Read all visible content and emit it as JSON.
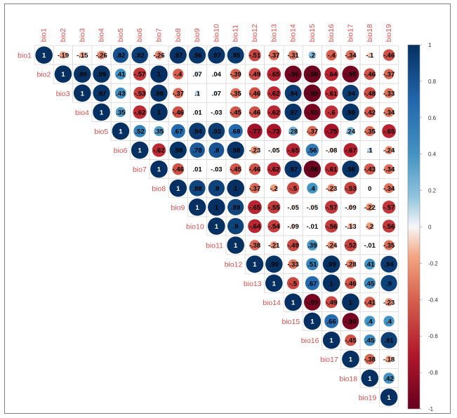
{
  "chart_data": {
    "type": "heatmap",
    "style": "correlation-circles-upper-triangle",
    "title": "",
    "xlabel": "",
    "ylabel": "",
    "variables": [
      "bio1",
      "bio2",
      "bio3",
      "bio4",
      "bio5",
      "bio6",
      "bio7",
      "bio8",
      "bio9",
      "bio10",
      "bio11",
      "bio12",
      "bio13",
      "bio14",
      "bio15",
      "bio16",
      "bio17",
      "bio18",
      "bio19"
    ],
    "matrix_upper": [
      [
        1,
        -0.19,
        -0.15,
        -0.26,
        0.82,
        0.92,
        -0.26,
        0.97,
        0.96,
        0.97,
        0.95,
        -0.51,
        -0.37,
        -0.31,
        0.2,
        -0.4,
        -0.34,
        -0.1,
        -0.46
      ],
      [
        1,
        0.99,
        0.99,
        0.41,
        -0.57,
        1,
        -0.4,
        0.07,
        0.04,
        -0.39,
        -0.49,
        -0.65,
        -0.96,
        -0.98,
        -0.64,
        -0.95,
        -0.46,
        -0.37
      ],
      [
        1,
        0.97,
        0.43,
        -0.53,
        0.98,
        -0.37,
        0.1,
        0.07,
        -0.35,
        -0.46,
        -0.62,
        0.94,
        -0.99,
        -0.61,
        0.94,
        -0.48,
        -0.33
      ],
      [
        1,
        0.35,
        -0.62,
        1,
        -0.46,
        0.01,
        -0.03,
        -0.45,
        -0.46,
        -0.62,
        0.97,
        -0.93,
        -0.6,
        0.98,
        -0.42,
        -0.34
      ],
      [
        1,
        0.52,
        0.35,
        0.67,
        0.94,
        0.93,
        0.68,
        -0.77,
        -0.73,
        0.28,
        -0.37,
        -0.75,
        0.24,
        -0.35,
        -0.65
      ],
      [
        1,
        -0.62,
        0.98,
        0.78,
        0.8,
        0.98,
        -0.23,
        -0.05,
        -0.65,
        0.56,
        -0.08,
        -0.67,
        0.1,
        -0.24
      ],
      [
        1,
        -0.46,
        0.01,
        -0.03,
        -0.45,
        -0.46,
        -0.62,
        0.97,
        -0.98,
        -0.61,
        0.98,
        -0.43,
        -0.34
      ],
      [
        1,
        0.88,
        0.9,
        1,
        -0.37,
        -0.2,
        -0.5,
        0.4,
        -0.23,
        -0.53,
        0,
        -0.34
      ],
      [
        1,
        1,
        0.89,
        -0.65,
        -0.55,
        -0.05,
        -0.05,
        -0.57,
        -0.09,
        -0.22,
        -0.57
      ],
      [
        1,
        0.9,
        -0.64,
        -0.54,
        -0.09,
        -0.01,
        -0.56,
        -0.13,
        -0.2,
        -0.56
      ],
      [
        1,
        -0.38,
        -0.21,
        -0.49,
        0.39,
        -0.24,
        -0.52,
        -0.01,
        -0.35
      ],
      [
        1,
        0.99,
        -0.33,
        0.51,
        0.99,
        -0.28,
        0.41,
        0.94
      ],
      [
        1,
        -0.5,
        0.67,
        1,
        -0.46,
        0.45,
        0.9
      ],
      [
        1,
        -0.93,
        -0.49,
        1,
        -0.41,
        -0.23
      ],
      [
        1,
        0.66,
        -0.93,
        0.4,
        0.4
      ],
      [
        1,
        -0.45,
        0.45,
        0.91
      ],
      [
        1,
        -0.38,
        -0.18
      ],
      [
        1,
        0.42
      ],
      [
        1
      ]
    ],
    "colorbar": {
      "range": [
        -1,
        1
      ],
      "ticks": [
        1,
        0.8,
        0.6,
        0.4,
        0.2,
        0,
        -0.2,
        -0.4,
        -0.6,
        -0.8,
        -1
      ],
      "colors": {
        "neg_strong": "#67001f",
        "neg_mid": "#d6604d",
        "neg_light": "#fddbc7",
        "zero": "#f7f7f7",
        "pos_light": "#d1e5f0",
        "pos_mid": "#4393c3",
        "pos_strong": "#053061"
      }
    },
    "label_color": "#d0524f",
    "grid": true
  }
}
